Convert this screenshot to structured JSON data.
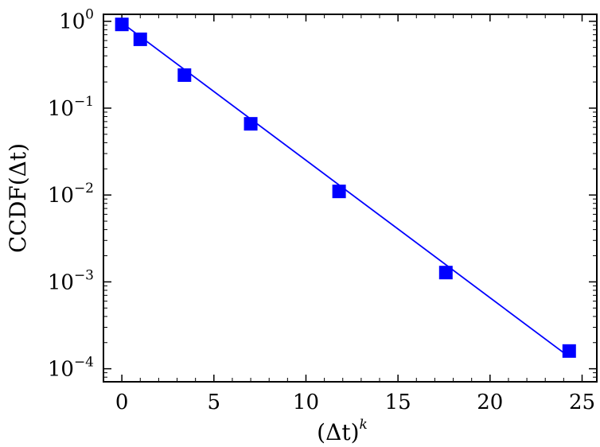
{
  "chart_data": {
    "type": "scatter",
    "xlabel": "(Δt)",
    "xlabel_superscript": "k",
    "ylabel": "CCDF(Δt)",
    "yscale": "log",
    "xlim": [
      -1,
      25.8
    ],
    "ylim_exponent": [
      -4.15,
      0.08
    ],
    "x_ticks": [
      0,
      5,
      10,
      15,
      20,
      25
    ],
    "x_tick_labels": [
      "0",
      "5",
      "10",
      "15",
      "20",
      "25"
    ],
    "y_tick_exponents": [
      0,
      -1,
      -2,
      -3,
      -4
    ],
    "y_tick_labels": [
      {
        "base": "10",
        "exp": "0"
      },
      {
        "base": "10",
        "exp": "−1"
      },
      {
        "base": "10",
        "exp": "−2"
      },
      {
        "base": "10",
        "exp": "−3"
      },
      {
        "base": "10",
        "exp": "−4"
      }
    ],
    "series": [
      {
        "kind": "markers",
        "marker": "square",
        "color": "#0000ff",
        "points": [
          {
            "x": 0.0,
            "y": 0.92
          },
          {
            "x": 1.0,
            "y": 0.62
          },
          {
            "x": 3.4,
            "y": 0.24
          },
          {
            "x": 7.0,
            "y": 0.066
          },
          {
            "x": 11.8,
            "y": 0.011
          },
          {
            "x": 17.6,
            "y": 0.00128
          },
          {
            "x": 24.3,
            "y": 0.00016
          }
        ]
      },
      {
        "kind": "line",
        "color": "#0000ff",
        "points": [
          {
            "x": 0.0,
            "y": 0.96
          },
          {
            "x": 24.3,
            "y": 0.000137
          }
        ]
      }
    ],
    "grid": false,
    "legend": "none"
  }
}
